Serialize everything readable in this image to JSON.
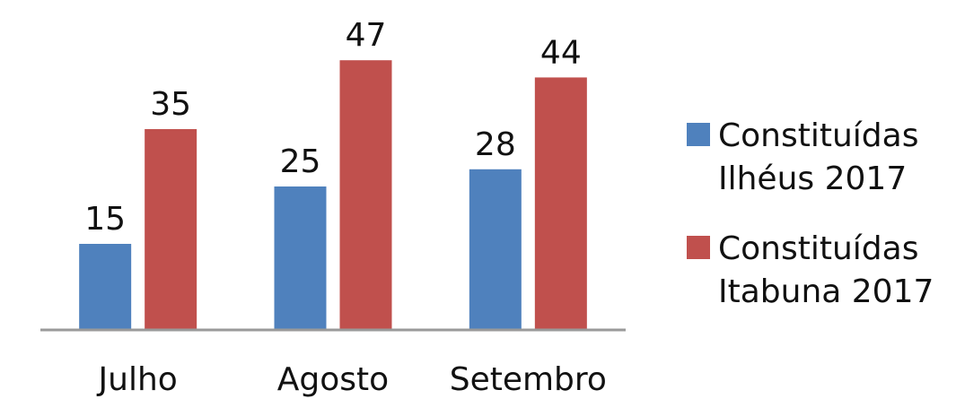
{
  "chart_data": {
    "type": "bar",
    "categories": [
      "Julho",
      "Agosto",
      "Setembro"
    ],
    "series": [
      {
        "name": "Constituídas\nIlhéus 2017",
        "color": "#4F81BD",
        "values": [
          15,
          25,
          28
        ]
      },
      {
        "name": "Constituídas\nItabuna 2017",
        "color": "#C0504D",
        "values": [
          35,
          47,
          44
        ]
      }
    ],
    "data_labels": true,
    "grid": false,
    "y_axis_visible": false,
    "legend_position": "right",
    "title": "",
    "xlabel": "",
    "ylabel": ""
  }
}
